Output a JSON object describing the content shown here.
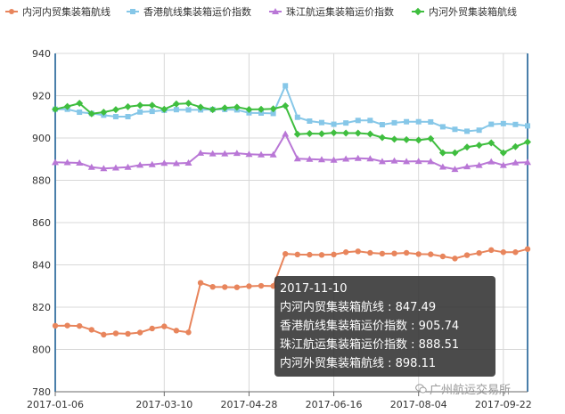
{
  "chart_data": {
    "type": "line",
    "title": "",
    "xlabel": "",
    "ylabel": "",
    "ylim": [
      780,
      940
    ],
    "yticks": [
      780,
      800,
      820,
      840,
      860,
      880,
      900,
      920,
      940
    ],
    "grid": true,
    "legend_position": "top",
    "x_tick_labels": [
      "2017-01-06",
      "2017-03-10",
      "2017-04-28",
      "2017-06-16",
      "2017-08-04",
      "2017-09-22"
    ],
    "x_tick_indices": [
      0,
      9,
      16,
      23,
      30,
      37
    ],
    "num_points": 40,
    "series": [
      {
        "name": "内河内贸集装箱航线",
        "color": "#e8855c",
        "marker": "circle",
        "values": [
          811.2,
          811.3,
          811.1,
          809.3,
          807.0,
          807.6,
          807.4,
          808.0,
          809.9,
          810.9,
          808.9,
          808.1,
          831.5,
          829.6,
          829.5,
          829.4,
          829.9,
          830.1,
          830.0,
          845.2,
          844.9,
          844.8,
          844.7,
          844.9,
          846.0,
          846.4,
          845.7,
          845.3,
          845.4,
          845.7,
          845.1,
          845.0,
          844.0,
          843.0,
          844.6,
          845.6,
          847.0,
          846.0,
          846.0,
          847.49
        ]
      },
      {
        "name": "香港航线集装箱运价指数",
        "color": "#86c7e8",
        "marker": "square",
        "values": [
          913.6,
          913.6,
          912.2,
          911.6,
          910.8,
          910.1,
          910.1,
          912.3,
          912.6,
          913.1,
          913.4,
          913.3,
          913.3,
          913.5,
          913.5,
          913.3,
          911.9,
          911.8,
          911.6,
          924.7,
          909.8,
          908.0,
          907.3,
          906.5,
          907.1,
          908.3,
          908.3,
          906.3,
          907.2,
          907.7,
          907.7,
          907.6,
          905.3,
          904.1,
          903.2,
          903.7,
          906.5,
          906.8,
          906.4,
          905.74
        ]
      },
      {
        "name": "珠江航运集装箱运价指数",
        "color": "#b977d6",
        "marker": "triangle",
        "values": [
          888.5,
          888.4,
          888.2,
          886.2,
          885.6,
          885.9,
          886.2,
          887.2,
          887.5,
          888.1,
          888.0,
          888.2,
          892.9,
          892.6,
          892.6,
          892.8,
          892.3,
          892.1,
          892.1,
          901.9,
          890.2,
          890.0,
          889.8,
          889.6,
          890.1,
          890.4,
          890.2,
          888.9,
          889.2,
          888.9,
          889.0,
          888.9,
          886.3,
          885.2,
          886.5,
          887.1,
          888.8,
          887.1,
          888.3,
          888.51
        ]
      },
      {
        "name": "内河外贸集装箱航线",
        "color": "#3fbe3f",
        "marker": "diamond",
        "values": [
          913.6,
          914.9,
          916.4,
          911.5,
          912.2,
          913.4,
          914.8,
          915.5,
          915.5,
          913.6,
          916.1,
          916.4,
          914.6,
          913.4,
          914.2,
          914.6,
          913.5,
          913.6,
          913.8,
          915.2,
          901.8,
          902.1,
          902.0,
          902.5,
          902.3,
          902.3,
          901.9,
          900.2,
          899.4,
          899.2,
          899.0,
          899.7,
          893.0,
          893.0,
          895.7,
          896.6,
          897.7,
          893.0,
          895.9,
          898.11
        ]
      }
    ]
  },
  "tooltip": {
    "date": "2017-11-10",
    "rows": [
      "内河内贸集装箱航线 : 847.49",
      "香港航线集装箱运价指数 : 905.74",
      "珠江航运集装箱运价指数 : 888.51",
      "内河外贸集装箱航线 : 898.11"
    ]
  },
  "watermark": {
    "text": "广州航运交易所",
    "icon": "wechat-icon"
  }
}
